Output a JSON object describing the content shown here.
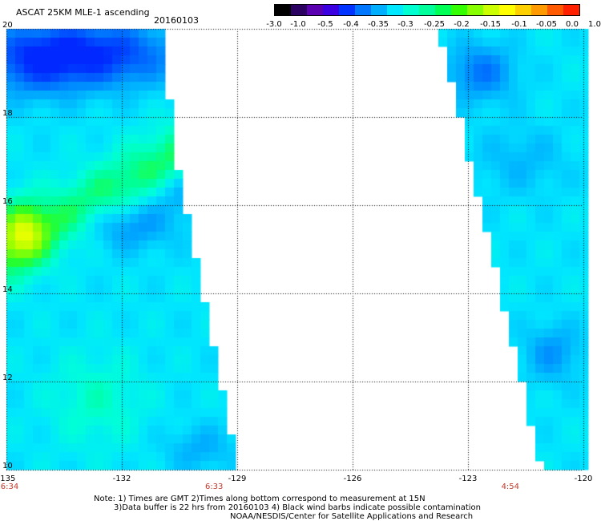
{
  "title": "ASCAT 25KM MLE-1 ascending",
  "date": "20160103",
  "colorbar": {
    "labels": [
      "-3.0",
      "-1.0",
      "-0.5",
      "-0.4",
      "-0.35",
      "-0.3",
      "-0.25",
      "-0.2",
      "-0.15",
      "-0.1",
      "-0.05",
      "0.0",
      "1.0"
    ],
    "colors": [
      "#000000",
      "#2a0060",
      "#5a00b0",
      "#3a00e0",
      "#0033ff",
      "#0077ff",
      "#00b0ff",
      "#00e8ff",
      "#00ffd0",
      "#00ff9a",
      "#00ff55",
      "#33ff00",
      "#88ff00",
      "#ccff00",
      "#ffff00",
      "#ffd000",
      "#ff9a00",
      "#ff5a00",
      "#ff2000"
    ]
  },
  "map": {
    "lon_range": [
      -135,
      -120
    ],
    "lat_range": [
      10,
      20
    ],
    "lon_ticks": [
      "-135",
      "-132",
      "-129",
      "-126",
      "-123",
      "-120"
    ],
    "lat_ticks": [
      "20",
      "18",
      "16",
      "14",
      "12",
      "10"
    ],
    "time_labels": [
      {
        "text": "6:34",
        "lon": -135
      },
      {
        "text": "6:33",
        "lon": -129.6
      },
      {
        "text": "4:54",
        "lon": -121.9
      }
    ]
  },
  "notes": [
    "Note: 1) Times are GMT 2)Times along bottom correspond to measurement at 15N",
    "3)Data buffer is 22 hrs from 20160103 4) Black wind barbs indicate possible contamination",
    "NOAA/NESDIS/Center for Satellite Applications and Research"
  ]
}
